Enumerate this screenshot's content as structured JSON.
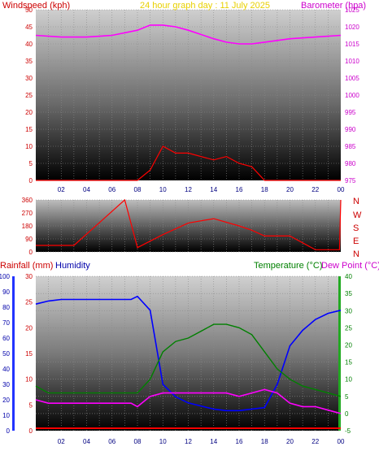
{
  "title": "24 hour graph day : 11 July 2025",
  "colors": {
    "windspeed": "#ff0000",
    "gust": "#ff0000",
    "avgwind": "#008000",
    "barometer": "#ff00ff",
    "direction": "#ff0000",
    "rain": "#ff0000",
    "humidity": "#0000ff",
    "temperature": "#008000",
    "dewpoint": "#ff00ff"
  },
  "top_panel": {
    "left_label": "Windspeed (kph)",
    "right_label": "Barometer (hpa)",
    "left_ticks": [
      "0",
      "5",
      "10",
      "15",
      "20",
      "25",
      "30",
      "35",
      "40",
      "45",
      "50"
    ],
    "right_ticks": [
      "975",
      "980",
      "985",
      "990",
      "995",
      "1000",
      "1005",
      "1010",
      "1015",
      "1020",
      "1025"
    ]
  },
  "mid_panel": {
    "left_ticks": [
      "0",
      "90",
      "180",
      "270",
      "360"
    ],
    "compass": [
      "N",
      "W",
      "S",
      "E",
      "N"
    ]
  },
  "bottom_panel": {
    "left_label": "Rainfall (mm)",
    "left_label2": "Humidity",
    "right_label": "Temperature (°C)",
    "right_label2": "Dew Point (°C)",
    "humidity_ticks": [
      "0",
      "10",
      "20",
      "30",
      "40",
      "50",
      "60",
      "70",
      "80",
      "90",
      "100"
    ],
    "rain_ticks": [
      "0",
      "5",
      "10",
      "15",
      "20",
      "25",
      "30"
    ],
    "temp_ticks": [
      "-5",
      "0",
      "5",
      "10",
      "15",
      "20",
      "25",
      "30",
      "35",
      "40"
    ]
  },
  "x_ticks": [
    "02",
    "04",
    "06",
    "08",
    "10",
    "12",
    "14",
    "16",
    "18",
    "20",
    "22",
    "00"
  ],
  "chart_data": [
    {
      "type": "line",
      "x": [
        0,
        2,
        4,
        6,
        8,
        9,
        10,
        11,
        12,
        14,
        15,
        16,
        17,
        18,
        20,
        22,
        24
      ],
      "series": [
        {
          "name": "Barometer (hpa)",
          "values": [
            1017.5,
            1017,
            1017,
            1017.5,
            1019,
            1020.5,
            1020.5,
            1020,
            1019,
            1016.5,
            1015.5,
            1015,
            1015,
            1015.5,
            1016.5,
            1017,
            1017.5
          ]
        },
        {
          "name": "Windspeed (kph)",
          "values": [
            0,
            0,
            0,
            0,
            0,
            3,
            10,
            8,
            8,
            6,
            7,
            5,
            4,
            0,
            0,
            0,
            0
          ]
        }
      ],
      "ylim": [
        0,
        50
      ],
      "y2lim": [
        975,
        1025
      ]
    },
    {
      "type": "line",
      "series": [
        {
          "name": "Wind direction",
          "values": [
            45,
            45,
            45,
            45,
            360,
            30,
            120,
            200,
            230,
            180,
            150,
            110,
            110,
            110,
            15,
            15,
            360
          ]
        }
      ],
      "x": [
        0,
        1,
        2,
        3,
        7,
        8,
        10,
        12,
        14,
        16,
        17,
        18,
        19,
        20,
        22,
        23.9,
        24
      ],
      "ylim": [
        0,
        360
      ]
    },
    {
      "type": "line",
      "x": [
        0,
        1,
        2,
        4,
        6,
        7.5,
        8,
        9,
        10,
        11,
        12,
        13,
        14,
        15,
        16,
        17,
        18,
        19,
        20,
        21,
        22,
        23,
        24
      ],
      "series": [
        {
          "name": "Humidity",
          "values": [
            82,
            84,
            85,
            85,
            85,
            85,
            87,
            78,
            30,
            22,
            18,
            16,
            14,
            13,
            13,
            14,
            15,
            30,
            55,
            65,
            72,
            76,
            78
          ]
        },
        {
          "name": "Temperature (°C)",
          "values": [
            8,
            6,
            6,
            6,
            6,
            6,
            6,
            10,
            18,
            21,
            22,
            24,
            26,
            26,
            25,
            23,
            18,
            13,
            10,
            8,
            7,
            6,
            5
          ]
        },
        {
          "name": "Dew Point (°C)",
          "values": [
            4,
            3,
            3,
            3,
            3,
            3,
            2,
            5,
            6,
            6,
            6,
            6,
            6,
            6,
            5,
            6,
            7,
            6,
            3,
            2,
            2,
            1,
            0
          ]
        },
        {
          "name": "Rainfall (mm)",
          "values": [
            0,
            0,
            0,
            0,
            0,
            0,
            0,
            0,
            0,
            0,
            0,
            0,
            0,
            0,
            0,
            0,
            0,
            0,
            0,
            0,
            0,
            0,
            0
          ]
        }
      ],
      "ylim": [
        0,
        100
      ]
    }
  ]
}
